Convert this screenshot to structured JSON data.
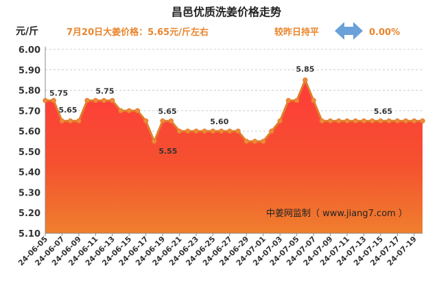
{
  "chart_data": {
    "type": "area",
    "title": "昌邑优质洗姜价格走势",
    "ylabel": "元/斤",
    "subtitle": "7月20日大姜价格：5.65元/斤左右",
    "change_text": "较昨日持平",
    "change_value": "0.00%",
    "watermark": "中姜网监制（ www.jiang7.com ）",
    "ylim": [
      5.1,
      6.0
    ],
    "yticks": [
      "6.00",
      "5.90",
      "5.80",
      "5.70",
      "5.60",
      "5.50",
      "5.40",
      "5.30",
      "5.20",
      "5.10"
    ],
    "x": [
      "24-06-05",
      "24-06-06",
      "24-06-07",
      "24-06-08",
      "24-06-09",
      "24-06-10",
      "24-06-11",
      "24-06-12",
      "24-06-13",
      "24-06-14",
      "24-06-15",
      "24-06-16",
      "24-06-17",
      "24-06-18",
      "24-06-19",
      "24-06-20",
      "24-06-21",
      "24-06-22",
      "24-06-23",
      "24-06-24",
      "24-06-25",
      "24-06-26",
      "24-06-27",
      "24-06-28",
      "24-06-29",
      "24-06-30",
      "24-07-01",
      "24-07-02",
      "24-07-03",
      "24-07-04",
      "24-07-05",
      "24-07-06",
      "24-07-07",
      "24-07-08",
      "24-07-09",
      "24-07-10",
      "24-07-11",
      "24-07-12",
      "24-07-13",
      "24-07-14",
      "24-07-15",
      "24-07-16",
      "24-07-17",
      "24-07-18",
      "24-07-19",
      "24-07-20"
    ],
    "xtick_labels": [
      "24-06-05",
      "24-06-07",
      "24-06-09",
      "24-06-11",
      "24-06-13",
      "24-06-15",
      "24-06-17",
      "24-06-19",
      "24-06-21",
      "24-06-23",
      "24-06-25",
      "24-06-27",
      "24-06-29",
      "24-07-01",
      "24-07-03",
      "24-07-05",
      "24-07-07",
      "24-07-09",
      "24-07-11",
      "24-07-13",
      "24-07-15",
      "24-07-17",
      "24-07-19"
    ],
    "values": [
      5.75,
      5.75,
      5.65,
      5.65,
      5.65,
      5.75,
      5.75,
      5.75,
      5.75,
      5.7,
      5.7,
      5.7,
      5.65,
      5.55,
      5.65,
      5.65,
      5.6,
      5.6,
      5.6,
      5.6,
      5.6,
      5.6,
      5.6,
      5.6,
      5.55,
      5.55,
      5.55,
      5.6,
      5.65,
      5.75,
      5.75,
      5.85,
      5.75,
      5.65,
      5.65,
      5.65,
      5.65,
      5.65,
      5.65,
      5.65,
      5.65,
      5.65,
      5.65,
      5.65,
      5.65,
      5.65
    ],
    "data_labels": [
      {
        "index": 0,
        "text": "5.75"
      },
      {
        "index": 2,
        "text": "5.65"
      },
      {
        "index": 6,
        "text": "5.75"
      },
      {
        "index": 13,
        "text": "5.55"
      },
      {
        "index": 14,
        "text": "5.65"
      },
      {
        "index": 19,
        "text": "5.60"
      },
      {
        "index": 31,
        "text": "5.85"
      },
      {
        "index": 40,
        "text": "5.65"
      }
    ],
    "grid": true,
    "colors": {
      "line": "#e07f2c",
      "marker_fill": "#f08a3a",
      "fill_top": "#ff3b3b",
      "fill_bottom": "#ef7f2e",
      "grid": "#cccccc",
      "arrow": "#6aa1d8",
      "orange_text": "#e8852c"
    }
  }
}
